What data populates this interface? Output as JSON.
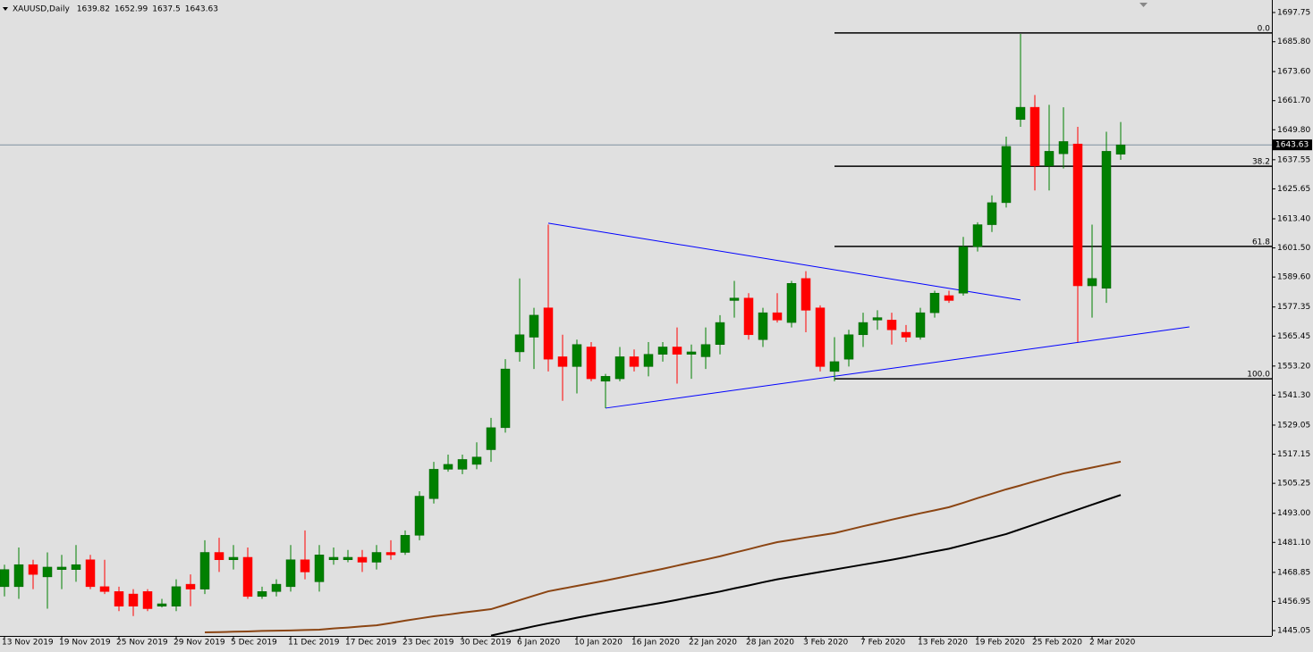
{
  "chart_data": {
    "type": "candlestick",
    "symbol": "XAUUSD,Daily",
    "categories": [
      "13 Nov 2019",
      null,
      null,
      null,
      "19 Nov 2019",
      null,
      null,
      null,
      "25 Nov 2019",
      null,
      null,
      null,
      "29 Nov 2019",
      null,
      null,
      null,
      "5 Dec 2019",
      null,
      null,
      null,
      "11 Dec 2019",
      null,
      null,
      null,
      "17 Dec 2019",
      null,
      null,
      null,
      "23 Dec 2019",
      null,
      null,
      null,
      "30 Dec 2019",
      null,
      null,
      null,
      "6 Jan 2020",
      null,
      null,
      null,
      "10 Jan 2020",
      null,
      null,
      null,
      "16 Jan 2020",
      null,
      null,
      null,
      "22 Jan 2020",
      null,
      null,
      null,
      "28 Jan 2020",
      null,
      null,
      null,
      "3 Feb 2020",
      null,
      null,
      null,
      "7 Feb 2020",
      null,
      null,
      null,
      "13 Feb 2020",
      null,
      null,
      null,
      "19 Feb 2020",
      null,
      null,
      null,
      "25 Feb 2020",
      null,
      null,
      null,
      "2 Mar 2020",
      null,
      null
    ],
    "open": [
      1463,
      1463,
      1472,
      1467,
      1470,
      1470,
      1474,
      1463,
      1461,
      1460,
      1461,
      1455,
      1455,
      1464,
      1462,
      1477,
      1474,
      1475,
      1459,
      1461,
      1463,
      1474,
      1465,
      1474,
      1474,
      1475,
      1473,
      1477,
      1477,
      1484,
      1499,
      1511,
      1511,
      1513,
      1519,
      1528,
      1559,
      1565,
      1577,
      1557,
      1553,
      1561,
      1547,
      1548,
      1557,
      1553,
      1558,
      1561,
      1558,
      1557,
      1562,
      1580,
      1581,
      1564,
      1575,
      1571,
      1589,
      1577,
      1551,
      1556,
      1566,
      1572,
      1572,
      1567,
      1565,
      1575,
      1582,
      1583,
      1602,
      1611,
      1620,
      1654,
      1659,
      1635,
      1640,
      1644,
      1586,
      1585,
      1639.82
    ],
    "high": [
      1472,
      1479,
      1474,
      1477,
      1476,
      1480,
      1476,
      1474,
      1463,
      1462,
      1462,
      1458,
      1466,
      1468,
      1482,
      1483,
      1480,
      1479,
      1463,
      1466,
      1480,
      1486,
      1480,
      1479,
      1478,
      1478,
      1480,
      1482,
      1486,
      1502,
      1514,
      1517,
      1517,
      1522,
      1532,
      1556,
      1589,
      1577,
      1611,
      1566,
      1564,
      1563,
      1550,
      1561,
      1560,
      1563,
      1563,
      1569,
      1562,
      1569,
      1574,
      1588,
      1583,
      1577,
      1583,
      1588,
      1592,
      1578,
      1565,
      1568,
      1575,
      1576,
      1575,
      1570,
      1577,
      1584,
      1584,
      1606,
      1612,
      1623,
      1647,
      1689,
      1664,
      1660,
      1659,
      1651,
      1611,
      1649,
      1652.99
    ],
    "low": [
      1459,
      1458,
      1462,
      1454,
      1462,
      1465,
      1462,
      1460,
      1453,
      1451,
      1453,
      1454.5,
      1453,
      1455,
      1460,
      1469,
      1470,
      1458,
      1458,
      1459,
      1461,
      1466,
      1461,
      1472,
      1473,
      1469,
      1470,
      1474,
      1476,
      1482,
      1497,
      1510,
      1509,
      1511,
      1514,
      1526,
      1555,
      1552,
      1551,
      1539,
      1542,
      1547,
      1536,
      1547,
      1551,
      1549,
      1555,
      1546,
      1548,
      1552,
      1558,
      1573,
      1564,
      1561,
      1571,
      1569,
      1567,
      1551,
      1547,
      1553,
      1561,
      1568,
      1562,
      1563,
      1564,
      1573,
      1579,
      1582,
      1600,
      1608,
      1618,
      1651,
      1625,
      1625,
      1634,
      1563,
      1573,
      1579,
      1637.5
    ],
    "close": [
      1470,
      1472,
      1468,
      1471,
      1471,
      1472,
      1463,
      1461,
      1455,
      1455,
      1454,
      1456,
      1463,
      1462,
      1477,
      1474,
      1475,
      1459,
      1461,
      1464,
      1474,
      1469,
      1476,
      1475,
      1475,
      1473,
      1477,
      1476,
      1484,
      1500,
      1511,
      1513,
      1515,
      1516,
      1528,
      1552,
      1566,
      1574,
      1556,
      1553,
      1562,
      1548,
      1549,
      1557,
      1553,
      1558,
      1561,
      1558,
      1559,
      1562,
      1571,
      1581,
      1566,
      1575,
      1572,
      1587,
      1576,
      1553,
      1555,
      1566,
      1571,
      1573,
      1568,
      1565,
      1575,
      1583,
      1580,
      1602,
      1611,
      1620,
      1643,
      1659,
      1635,
      1641,
      1645,
      1586,
      1589,
      1641,
      1643.63
    ],
    "up_color": "#008000",
    "down_color": "#ff0000",
    "ylim": [
      1442.86,
      1702.86
    ],
    "yticks": [
      1697.75,
      {
        "value": 1685.8,
        "label": "1685.80"
      },
      {
        "value": 1673.6,
        "label": "1673.60"
      },
      {
        "value": 1661.7,
        "label": "1661.70"
      },
      {
        "value": 1649.8,
        "label": "1649.80"
      },
      1637.55,
      1625.65,
      {
        "value": 1613.4,
        "label": "1613.40"
      },
      {
        "value": 1601.5,
        "label": "1601.50"
      },
      {
        "value": 1589.6,
        "label": "1589.60"
      },
      1577.35,
      1565.45,
      {
        "value": 1553.2,
        "label": "1553.20"
      },
      {
        "value": 1541.3,
        "label": "1541.30"
      },
      1529.05,
      1517.15,
      1505.25,
      {
        "value": 1493,
        "label": "1493.00"
      },
      {
        "value": 1481.1,
        "label": "1481.10"
      },
      1468.85,
      1456.95,
      1445.05
    ],
    "moving_averages": [
      {
        "color": "#8b4513",
        "values": [
          null,
          null,
          null,
          null,
          null,
          null,
          null,
          null,
          null,
          null,
          null,
          null,
          null,
          null,
          1444.3,
          1444.4,
          1444.6,
          1444.7,
          1444.9,
          1445.0,
          1445.1,
          1445.3,
          1445.4,
          1445.9,
          1446.3,
          1446.8,
          1447.2,
          1448.1,
          1449.1,
          1450.0,
          1450.9,
          1451.6,
          1452.4,
          1453.1,
          1453.8,
          1455.6,
          1457.5,
          1459.3,
          1461.1,
          1462.2,
          1463.3,
          1464.4,
          1465.5,
          1466.7,
          1467.9,
          1469.1,
          1470.3,
          1471.6,
          1472.9,
          1474.1,
          1475.4,
          1476.9,
          1478.3,
          1479.8,
          1481.2,
          1482.1,
          1483.1,
          1484.0,
          1484.9,
          1486.3,
          1487.7,
          1489.0,
          1490.4,
          1491.7,
          1493.0,
          1494.2,
          1495.5,
          1497.3,
          1499.2,
          1501.0,
          1502.8,
          1504.4,
          1506.1,
          1507.7,
          1509.3,
          1510.5,
          1511.7,
          1512.9,
          1514.1
        ]
      },
      {
        "color": "#000000",
        "values": [
          null,
          null,
          null,
          null,
          null,
          null,
          null,
          null,
          null,
          null,
          null,
          null,
          null,
          null,
          null,
          null,
          null,
          null,
          null,
          null,
          null,
          null,
          null,
          null,
          null,
          null,
          null,
          null,
          null,
          null,
          null,
          null,
          null,
          null,
          1443.0,
          1444.3,
          1445.5,
          1446.8,
          1448.0,
          1449.1,
          1450.3,
          1451.4,
          1452.5,
          1453.5,
          1454.5,
          1455.5,
          1456.5,
          1457.6,
          1458.8,
          1459.9,
          1461.0,
          1462.3,
          1463.5,
          1464.8,
          1466.0,
          1467.0,
          1468.0,
          1469.0,
          1470.0,
          1471.0,
          1472.0,
          1473.0,
          1474.0,
          1475.1,
          1476.3,
          1477.4,
          1478.5,
          1480.0,
          1481.5,
          1483.0,
          1484.5,
          1486.5,
          1488.5,
          1490.5,
          1492.5,
          1494.5,
          1496.5,
          1498.5,
          1500.5
        ]
      }
    ],
    "trendlines": [
      {
        "color": "#0000ff",
        "x": [
          38,
          71
        ],
        "values": [
          1611.6,
          1580.2
        ]
      },
      {
        "color": "#0000ff",
        "x": [
          42,
          82.8
        ],
        "values": [
          1536.0,
          1569.2
        ]
      }
    ],
    "fib_levels": [
      {
        "label": "0.0",
        "value": 1689.4
      },
      {
        "label": "38.2",
        "value": 1634.9
      },
      {
        "label": "61.8",
        "value": 1602.1
      },
      {
        "label": "100.0",
        "value": 1548.0
      }
    ],
    "price_line_color": "#7f8fa0"
  }
}
